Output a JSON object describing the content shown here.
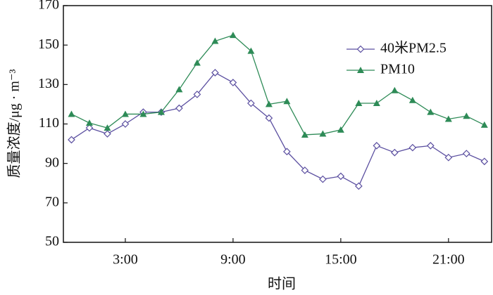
{
  "chart_data": {
    "type": "line",
    "x_label": "时间",
    "y_label": "质量浓度/μg · m⁻³",
    "x": [
      0,
      1,
      2,
      3,
      4,
      5,
      6,
      7,
      8,
      9,
      10,
      11,
      12,
      13,
      14,
      15,
      16,
      17,
      18,
      19,
      20,
      21,
      22,
      23
    ],
    "xlim": [
      -0.45,
      23.4
    ],
    "xticks": [
      {
        "value": 3,
        "label": "3:00"
      },
      {
        "value": 9,
        "label": "9:00"
      },
      {
        "value": 15,
        "label": "15:00"
      },
      {
        "value": 21,
        "label": "21:00"
      }
    ],
    "ylim": [
      50,
      170
    ],
    "yticks": [
      50,
      70,
      90,
      110,
      130,
      150,
      170
    ],
    "legend": "upper right",
    "series": [
      {
        "name": "40米PM2.5",
        "color": "#5b4fa0",
        "marker": "diamond",
        "values": [
          102,
          108,
          105,
          110,
          116,
          116,
          118,
          125,
          136,
          131,
          120.5,
          113,
          96,
          86.5,
          82,
          83.5,
          78.5,
          99,
          95.5,
          98,
          99,
          93,
          95,
          91
        ]
      },
      {
        "name": "PM10",
        "color": "#2e8b57",
        "marker": "triangle",
        "values": [
          115,
          110.5,
          108,
          115,
          115,
          116,
          127.5,
          141,
          152,
          155,
          147,
          120,
          121.5,
          104.5,
          105,
          107,
          120.5,
          120.5,
          127,
          122,
          116,
          112.5,
          114,
          109.5
        ]
      }
    ]
  }
}
